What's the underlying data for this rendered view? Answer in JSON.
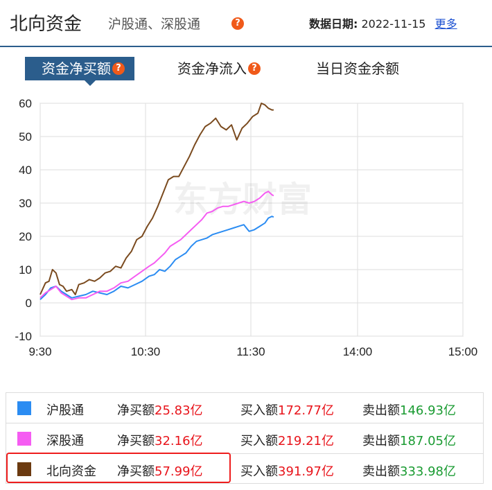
{
  "header": {
    "title": "北向资金",
    "subtitle": "沪股通、深股通",
    "date_label": "数据日期:",
    "date_value": "2022-11-15",
    "more_link": "更多"
  },
  "tabs": [
    {
      "label": "资金净买额",
      "active": true,
      "has_help": true
    },
    {
      "label": "资金净流入",
      "active": false,
      "has_help": true
    },
    {
      "label": "当日资金余额",
      "active": false,
      "has_help": false
    }
  ],
  "watermark": "东方财富",
  "chart_data": {
    "type": "line",
    "title": "",
    "xlabel": "",
    "ylabel": "",
    "ylim": [
      -10,
      60
    ],
    "yticks": [
      "60",
      "50",
      "40",
      "30",
      "20",
      "10",
      "0",
      "-10"
    ],
    "xticks": [
      "9:30",
      "10:30",
      "11:30",
      "14:00",
      "15:00"
    ],
    "grid": true,
    "series": [
      {
        "name": "沪股通",
        "color": "#2b8cf2",
        "points": [
          [
            0,
            1
          ],
          [
            3,
            2.5
          ],
          [
            6,
            4.5
          ],
          [
            9,
            5
          ],
          [
            12,
            3.5
          ],
          [
            15,
            2.5
          ],
          [
            18,
            1.5
          ],
          [
            22,
            2
          ],
          [
            26,
            2.5
          ],
          [
            30,
            3.5
          ],
          [
            34,
            3
          ],
          [
            38,
            2.5
          ],
          [
            42,
            3.5
          ],
          [
            46,
            5
          ],
          [
            50,
            4.5
          ],
          [
            54,
            5.5
          ],
          [
            58,
            6.5
          ],
          [
            62,
            8
          ],
          [
            65,
            8.5
          ],
          [
            68,
            10
          ],
          [
            71,
            9.5
          ],
          [
            74,
            11
          ],
          [
            77,
            13
          ],
          [
            80,
            14
          ],
          [
            83,
            15
          ],
          [
            86,
            17
          ],
          [
            89,
            18.5
          ],
          [
            92,
            19
          ],
          [
            95,
            19.5
          ],
          [
            98,
            20.5
          ],
          [
            101,
            21
          ],
          [
            104,
            21.5
          ],
          [
            107,
            22
          ],
          [
            110,
            22.5
          ],
          [
            113,
            23
          ],
          [
            116,
            23.5
          ],
          [
            119,
            21.5
          ],
          [
            122,
            22
          ],
          [
            125,
            23
          ],
          [
            128,
            24
          ],
          [
            130,
            25.5
          ],
          [
            132,
            26
          ],
          [
            133,
            25.8
          ]
        ]
      },
      {
        "name": "深股通",
        "color": "#f55cf2",
        "points": [
          [
            0,
            1.5
          ],
          [
            3,
            3
          ],
          [
            6,
            4
          ],
          [
            9,
            5
          ],
          [
            12,
            3
          ],
          [
            15,
            2
          ],
          [
            18,
            1
          ],
          [
            22,
            1.5
          ],
          [
            26,
            1.5
          ],
          [
            30,
            2.5
          ],
          [
            34,
            3.5
          ],
          [
            38,
            3.5
          ],
          [
            42,
            4.5
          ],
          [
            46,
            6
          ],
          [
            50,
            6.5
          ],
          [
            54,
            8
          ],
          [
            58,
            9.5
          ],
          [
            62,
            11
          ],
          [
            65,
            12
          ],
          [
            68,
            13.5
          ],
          [
            71,
            15
          ],
          [
            74,
            17
          ],
          [
            77,
            18
          ],
          [
            80,
            19
          ],
          [
            83,
            20.5
          ],
          [
            86,
            22
          ],
          [
            89,
            23.5
          ],
          [
            92,
            25
          ],
          [
            95,
            27
          ],
          [
            98,
            27.5
          ],
          [
            101,
            28.5
          ],
          [
            104,
            29
          ],
          [
            107,
            29
          ],
          [
            110,
            29.5
          ],
          [
            113,
            30
          ],
          [
            116,
            30.5
          ],
          [
            119,
            30
          ],
          [
            122,
            30.5
          ],
          [
            125,
            31.5
          ],
          [
            128,
            33
          ],
          [
            130,
            33.5
          ],
          [
            132,
            32.5
          ],
          [
            133,
            32.2
          ]
        ]
      },
      {
        "name": "北向资金",
        "color": "#7a4a1e",
        "points": [
          [
            0,
            2.5
          ],
          [
            3,
            6
          ],
          [
            5,
            6.5
          ],
          [
            7,
            10
          ],
          [
            9,
            9
          ],
          [
            11,
            5.5
          ],
          [
            13,
            5
          ],
          [
            15,
            3.5
          ],
          [
            18,
            4
          ],
          [
            20,
            2.5
          ],
          [
            22,
            5.5
          ],
          [
            25,
            6
          ],
          [
            28,
            7
          ],
          [
            31,
            6.5
          ],
          [
            34,
            7.5
          ],
          [
            37,
            9
          ],
          [
            40,
            9.5
          ],
          [
            43,
            11
          ],
          [
            46,
            10.5
          ],
          [
            49,
            13.5
          ],
          [
            52,
            15.5
          ],
          [
            55,
            19
          ],
          [
            58,
            20
          ],
          [
            61,
            23
          ],
          [
            64,
            25.5
          ],
          [
            67,
            29
          ],
          [
            70,
            33
          ],
          [
            73,
            37
          ],
          [
            76,
            38
          ],
          [
            79,
            38
          ],
          [
            82,
            41
          ],
          [
            85,
            44
          ],
          [
            88,
            47.5
          ],
          [
            91,
            50.5
          ],
          [
            94,
            53
          ],
          [
            97,
            54
          ],
          [
            100,
            55.5
          ],
          [
            103,
            53
          ],
          [
            106,
            52
          ],
          [
            109,
            53.5
          ],
          [
            112,
            49
          ],
          [
            115,
            52.5
          ],
          [
            118,
            54
          ],
          [
            121,
            56
          ],
          [
            124,
            57
          ],
          [
            126,
            60
          ],
          [
            128,
            59.5
          ],
          [
            130,
            58.5
          ],
          [
            132,
            58
          ],
          [
            133,
            58
          ]
        ]
      }
    ],
    "x_unit_note": "x is minutes since 9:30"
  },
  "summary": [
    {
      "name": "沪股通",
      "color": "#2b8cf2",
      "net_label": "净买额",
      "net_value": "25.83亿",
      "buy_label": "买入额",
      "buy_value": "172.77亿",
      "sell_label": "卖出额",
      "sell_value": "146.93亿"
    },
    {
      "name": "深股通",
      "color": "#f55cf2",
      "net_label": "净买额",
      "net_value": "32.16亿",
      "buy_label": "买入额",
      "buy_value": "219.21亿",
      "sell_label": "卖出额",
      "sell_value": "187.05亿"
    },
    {
      "name": "北向资金",
      "color": "#6b3a10",
      "net_label": "净买额",
      "net_value": "57.99亿",
      "buy_label": "买入额",
      "buy_value": "391.97亿",
      "sell_label": "卖出额",
      "sell_value": "333.98亿"
    }
  ]
}
